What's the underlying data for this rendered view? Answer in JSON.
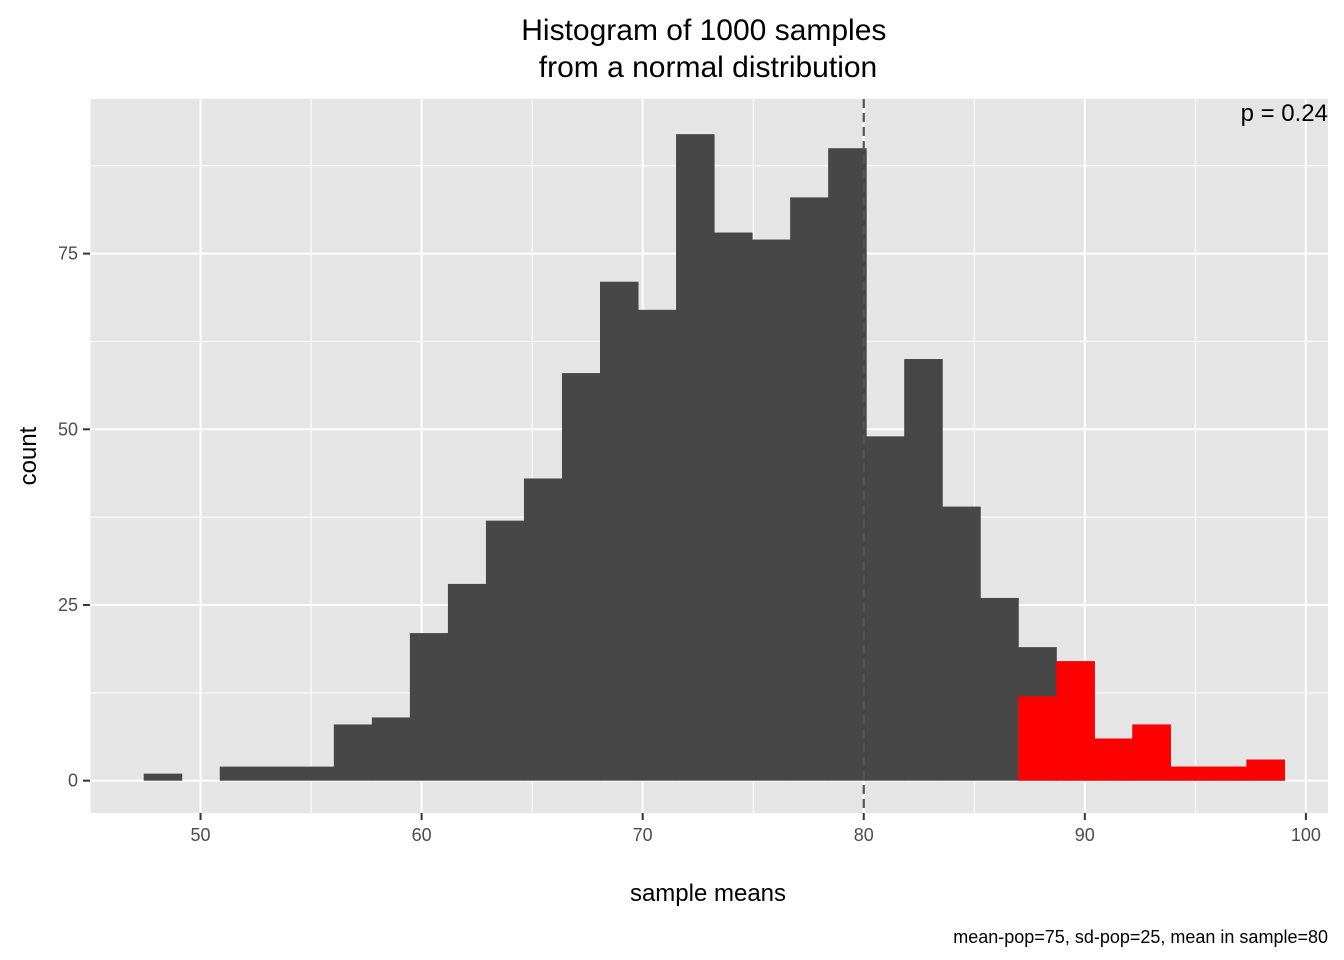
{
  "chart_data": {
    "type": "bar",
    "title": "Histogram of 1000 samples\nfrom a normal distribution",
    "xlabel": "sample means",
    "ylabel": "count",
    "caption": "mean-pop=75, sd-pop=25, mean in sample=80",
    "annotation": "p = 0.24",
    "xlim": [
      45,
      101
    ],
    "ylim": [
      -4.6,
      97
    ],
    "x_ticks": [
      50,
      60,
      70,
      80,
      90,
      100
    ],
    "y_ticks": [
      0,
      25,
      50,
      75
    ],
    "grid": true,
    "reference_line": {
      "x": 80,
      "style": "dashed"
    },
    "bin_width": 1.72,
    "colors": {
      "panel": "#e5e5e5",
      "bar": "#474747",
      "highlight": "#ff0000",
      "grid": "#ffffff",
      "vline": "#555555"
    },
    "bins": [
      {
        "x0": 47.43,
        "count": 1
      },
      {
        "x0": 49.15,
        "count": 0
      },
      {
        "x0": 50.87,
        "count": 2
      },
      {
        "x0": 52.59,
        "count": 2
      },
      {
        "x0": 54.31,
        "count": 2
      },
      {
        "x0": 56.03,
        "count": 8
      },
      {
        "x0": 57.75,
        "count": 9
      },
      {
        "x0": 59.47,
        "count": 21
      },
      {
        "x0": 61.19,
        "count": 28
      },
      {
        "x0": 62.91,
        "count": 37
      },
      {
        "x0": 64.63,
        "count": 43
      },
      {
        "x0": 66.35,
        "count": 58
      },
      {
        "x0": 68.07,
        "count": 71
      },
      {
        "x0": 69.79,
        "count": 67
      },
      {
        "x0": 71.51,
        "count": 92
      },
      {
        "x0": 73.23,
        "count": 78
      },
      {
        "x0": 74.95,
        "count": 77
      },
      {
        "x0": 76.67,
        "count": 83
      },
      {
        "x0": 78.39,
        "count": 90
      },
      {
        "x0": 80.11,
        "count": 49
      },
      {
        "x0": 81.83,
        "count": 60
      },
      {
        "x0": 83.55,
        "count": 39
      },
      {
        "x0": 85.27,
        "count": 26
      },
      {
        "x0": 86.99,
        "count": 19,
        "highlight": 12
      },
      {
        "x0": 88.71,
        "count": 17,
        "highlight": 17
      },
      {
        "x0": 90.43,
        "count": 6,
        "highlight": 6
      },
      {
        "x0": 92.15,
        "count": 8,
        "highlight": 8
      },
      {
        "x0": 93.87,
        "count": 2,
        "highlight": 2
      },
      {
        "x0": 95.59,
        "count": 2,
        "highlight": 2
      },
      {
        "x0": 97.31,
        "count": 3,
        "highlight": 3
      }
    ]
  }
}
